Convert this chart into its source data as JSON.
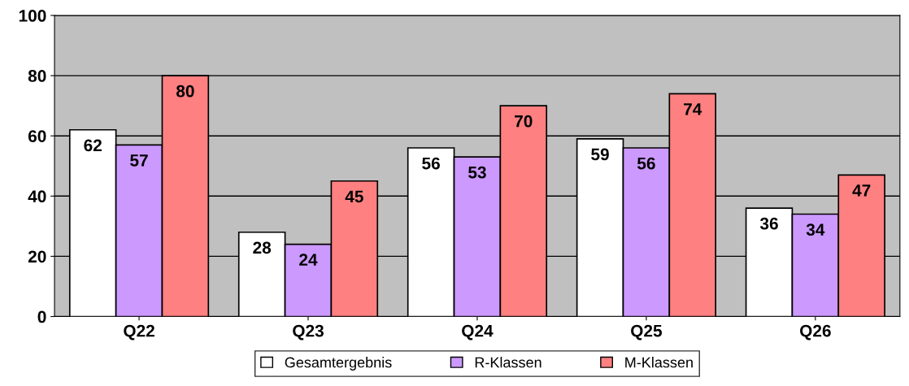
{
  "chart_data": {
    "type": "bar",
    "categories": [
      "Q22",
      "Q23",
      "Q24",
      "Q25",
      "Q26"
    ],
    "series": [
      {
        "name": "Gesamtergebnis",
        "color": "#ffffff",
        "values": [
          62,
          28,
          56,
          59,
          36
        ]
      },
      {
        "name": "R-Klassen",
        "color": "#cc99ff",
        "values": [
          57,
          24,
          53,
          56,
          34
        ]
      },
      {
        "name": "M-Klassen",
        "color": "#ff8080",
        "values": [
          80,
          45,
          70,
          74,
          47
        ]
      }
    ],
    "ylim": [
      0,
      100
    ],
    "yticks": [
      0,
      20,
      40,
      60,
      80,
      100
    ],
    "grid": "y",
    "legend": "bottom",
    "data_labels": true
  }
}
